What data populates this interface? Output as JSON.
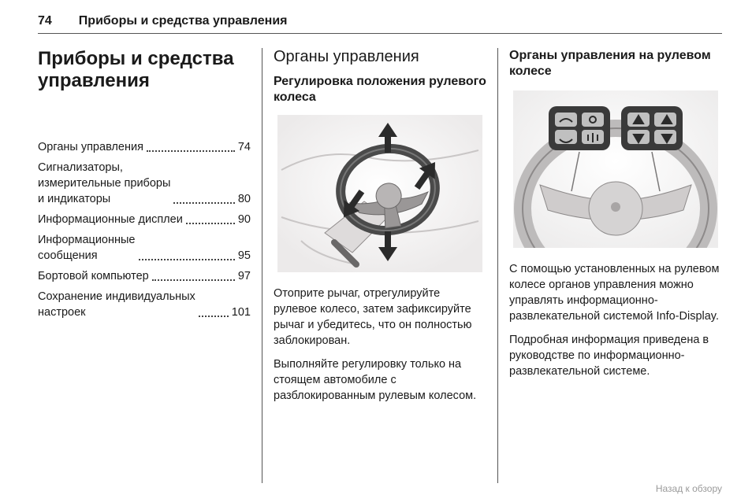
{
  "page": {
    "number": "74",
    "header_title": "Приборы и средства управления",
    "footer": "Назад к обзору"
  },
  "col1": {
    "main_title": "Приборы и средства управления",
    "toc": [
      {
        "label": "Органы управления",
        "page": "74"
      },
      {
        "label": "Сигнализаторы,\nизмерительные приборы\nи индикаторы",
        "page": "80"
      },
      {
        "label": "Информационные дисплеи",
        "page": "90"
      },
      {
        "label": "Информационные\nсообщения",
        "page": "95"
      },
      {
        "label": "Бортовой компьютер",
        "page": "97"
      },
      {
        "label": "Сохранение индивидуальных\nнастроек",
        "page": "101"
      }
    ]
  },
  "col2": {
    "section_title": "Органы управления",
    "sub_title": "Регулировка положения рулевого колеса",
    "p1": "Отоприте рычаг, отрегулируйте рулевое колесо, затем зафиксируйте рычаг и убедитесь, что он полностью заблокирован.",
    "p2": "Выполняйте регулировку только на стоящем автомобиле с разблокированным рулевым колесом."
  },
  "col3": {
    "sub_title": "Органы управления на рулевом колесе",
    "p1": "С помощью установленных на рулевом колесе органов управления можно управлять информационно-развлекательной системой Info-Display.",
    "p2": "Подробная информация приведена в руководстве по информационно-развлекательной системе."
  },
  "illus": {
    "wheel_stroke": "#4a4a4a",
    "arrow_fill": "#2b2b2b",
    "bg_tint": "#f0f0f0",
    "pad_fill": "#3a3a3a",
    "pad_highlight": "#c0c0c0"
  }
}
